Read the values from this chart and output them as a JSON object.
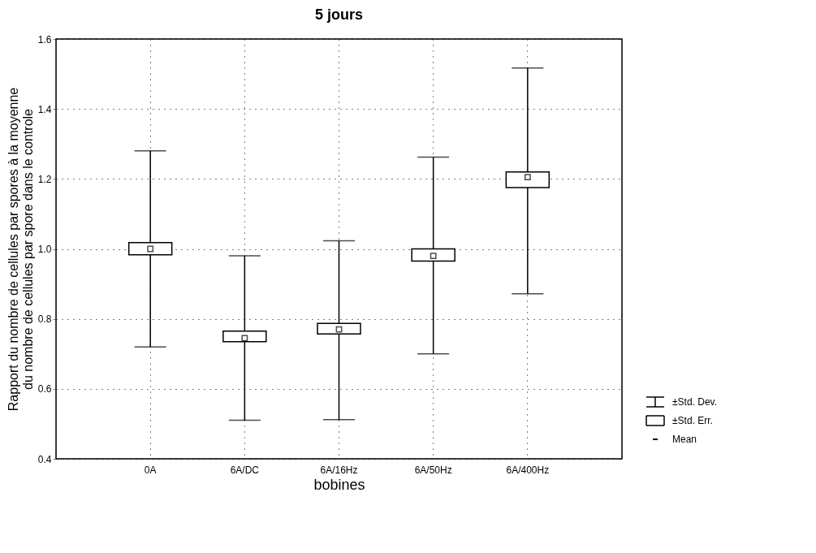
{
  "chart_data": {
    "type": "box",
    "title": "5 jours",
    "xlabel": "bobines",
    "ylabel": "Rapport du nombre de cellules par spores à la moyenne\ndu nombre de cellules par spore dans le controle",
    "categories": [
      "0A",
      "6A/DC",
      "6A/16Hz",
      "6A/50Hz",
      "6A/400Hz"
    ],
    "boxes": [
      {
        "low": 0.72,
        "q1": 0.983,
        "median": 1.0,
        "q3": 1.018,
        "high": 1.28
      },
      {
        "low": 0.51,
        "q1": 0.735,
        "median": 0.745,
        "q3": 0.765,
        "high": 0.98
      },
      {
        "low": 0.512,
        "q1": 0.757,
        "median": 0.77,
        "q3": 0.787,
        "high": 1.023
      },
      {
        "low": 0.7,
        "q1": 0.965,
        "median": 0.98,
        "q3": 1.0,
        "high": 1.262
      },
      {
        "low": 0.872,
        "q1": 1.175,
        "median": 1.205,
        "q3": 1.22,
        "high": 1.517
      }
    ],
    "ylim": [
      0.4,
      1.6
    ],
    "yticks": [
      0.4,
      0.6,
      0.8,
      {
        "value": 1,
        "label": "1.0"
      },
      1.2,
      1.4,
      1.6
    ],
    "grid": true,
    "annotations": [
      "±Std. Dev.",
      "±Std. Err.",
      "Mean"
    ]
  }
}
